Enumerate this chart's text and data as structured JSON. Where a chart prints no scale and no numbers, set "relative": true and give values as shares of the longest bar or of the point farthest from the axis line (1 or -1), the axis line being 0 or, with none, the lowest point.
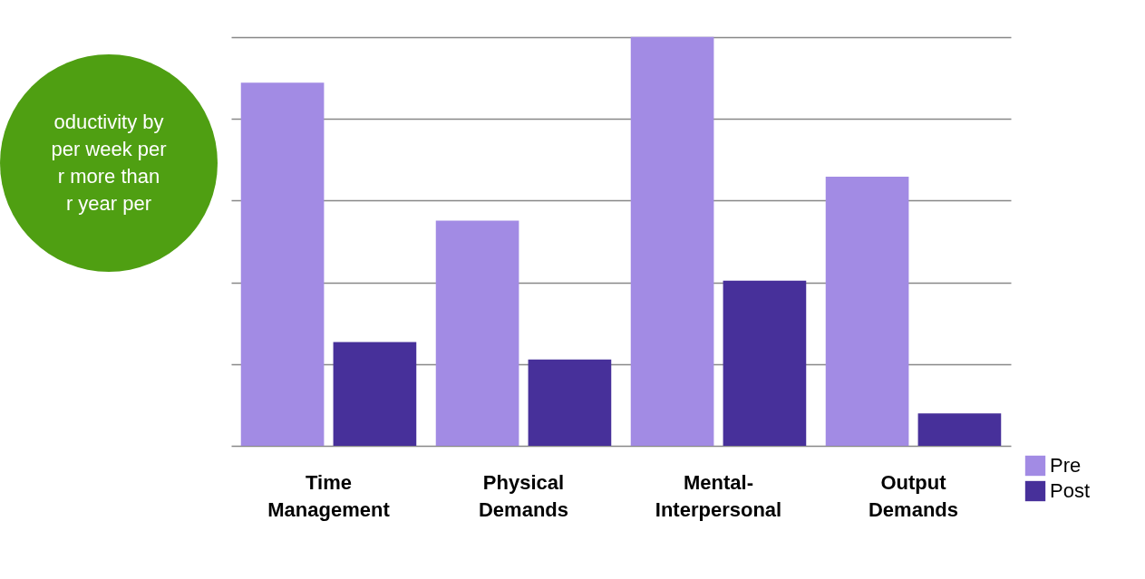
{
  "chart_data": {
    "type": "bar",
    "relative": true,
    "categories": [
      "Time Management",
      "Physical Demands",
      "Mental-Interpersonal",
      "Output Demands"
    ],
    "series": [
      {
        "name": "Pre",
        "color": "#a28be4",
        "values": [
          0.888,
          0.551,
          1,
          0.658
        ]
      },
      {
        "name": "Post",
        "color": "#47309a",
        "values": [
          0.254,
          0.211,
          0.404,
          0.079
        ]
      }
    ],
    "annotations": [
      "oductivity by",
      "per week per",
      "r more than",
      "r year per"
    ],
    "grid": "y",
    "legend": "bottom right"
  }
}
